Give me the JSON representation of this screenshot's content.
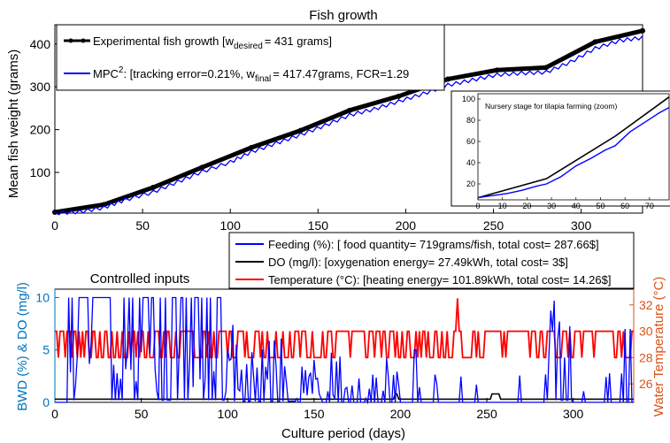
{
  "chart_data": [
    {
      "type": "line",
      "title": "Fish growth",
      "xlabel": "",
      "ylabel": "Mean fish weight (grams)",
      "xlim": [
        0,
        335
      ],
      "ylim": [
        5,
        445
      ],
      "xticks": [
        0,
        50,
        100,
        150,
        200,
        250,
        300
      ],
      "yticks": [
        100,
        200,
        300,
        400
      ],
      "legend_placement": "top-left",
      "series": [
        {
          "name": "Experimental fish growth [w_desired = 431 grams]",
          "color": "#000000",
          "x": [
            0,
            28,
            56,
            84,
            112,
            140,
            168,
            196,
            224,
            252,
            280,
            308,
            335
          ],
          "y": [
            7,
            25,
            65,
            112,
            158,
            198,
            245,
            278,
            318,
            339,
            345,
            405,
            431
          ]
        },
        {
          "name": "MPC²: [tracking error=0.21%, w_final = 417.47grams, FCR=1.29",
          "color": "#0000ff",
          "x": [
            0,
            14,
            28,
            40,
            56,
            70,
            84,
            100,
            112,
            126,
            140,
            154,
            168,
            182,
            196,
            210,
            224,
            238,
            252,
            266,
            280,
            294,
            308,
            322,
            335
          ],
          "y": [
            7,
            10,
            20,
            38,
            56,
            80,
            104,
            126,
            150,
            170,
            190,
            212,
            236,
            250,
            268,
            286,
            306,
            318,
            330,
            334,
            336,
            360,
            392,
            410,
            417
          ]
        }
      ],
      "legend": [
        {
          "label_main": "Experimental fish growth [w",
          "label_sub": "desired",
          "label_rest": "= 431 grams]"
        },
        {
          "label_main": "MPC",
          "label_sup": "2",
          "label_mid": ": [tracking error=0.21%, w",
          "label_sub": "final",
          "label_rest": "= 417.47grams, FCR=1.29"
        }
      ],
      "inset": {
        "title": "Nursery stage for tilapia farming (zoom)",
        "xlim": [
          0,
          78
        ],
        "ylim": [
          5,
          105
        ],
        "xticks": [
          0,
          10,
          20,
          30,
          40,
          50,
          60,
          70
        ],
        "yticks": [
          20,
          40,
          60,
          80,
          100
        ],
        "series": [
          {
            "color": "#000000",
            "x": [
              0,
              28,
              56,
              84
            ],
            "y": [
              7,
              25,
              65,
              112
            ]
          },
          {
            "color": "#0000ff",
            "x": [
              0,
              6,
              12,
              18,
              24,
              28,
              34,
              40,
              46,
              52,
              56,
              62,
              68,
              74,
              78
            ],
            "y": [
              7,
              9,
              11,
              14,
              18,
              20,
              27,
              37,
              44,
              52,
              56,
              69,
              78,
              87,
              92
            ]
          }
        ]
      }
    },
    {
      "type": "line",
      "title": "Controlled inputs",
      "xlabel": "Culture period (days)",
      "ylabel_left": "BWD (%) & DO (mg/l)",
      "ylabel_right": "Water Temperature (°C)",
      "xlim": [
        0,
        335
      ],
      "ylim_left": [
        0,
        10.8
      ],
      "ylim_right": [
        24.6,
        33.2
      ],
      "xticks": [
        0,
        50,
        100,
        150,
        200,
        250,
        300
      ],
      "yticks_left": [
        0,
        5,
        10
      ],
      "yticks_right": [
        26,
        28,
        30,
        32
      ],
      "legend_placement": "top-right",
      "left_axis_color": "#0072bd",
      "right_axis_color": "#d95319",
      "legend": [
        {
          "label": "Feeding (%): [ food quantity= 719grams/fish, total cost= 287.66$]"
        },
        {
          "label": "DO (mg/l): [oxygenation energy= 27.49kWh, total cost= 3$]"
        },
        {
          "label": "Temperature (°C): [heating energy= 101.89kWh, total cost= 14.26$]"
        }
      ],
      "series": [
        {
          "name": "Feeding (%)",
          "color": "#0000ff",
          "axis": "left",
          "sample_step": 1,
          "pattern": "pulses decaying from 10 near day 10-100 to ~0-2 later, occasional spikes near 210, 290, 330"
        },
        {
          "name": "DO (mg/l)",
          "color": "#000000",
          "axis": "left",
          "baseline": 0.3
        },
        {
          "name": "Temperature (°C)",
          "color": "#ff0000",
          "axis": "right",
          "low": 28,
          "high": 30,
          "spike": {
            "x": 233,
            "y": 32.5
          }
        }
      ]
    }
  ]
}
